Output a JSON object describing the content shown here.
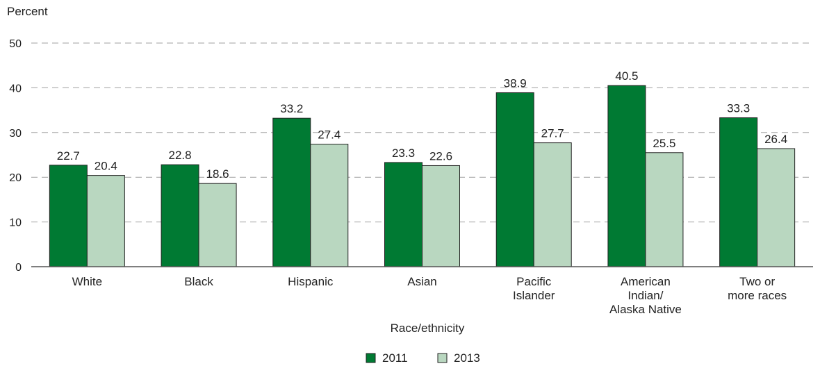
{
  "chart_data": {
    "type": "bar",
    "ylabel": "Percent",
    "xlabel": "Race/ethnicity",
    "ylim": [
      0,
      50
    ],
    "yticks": [
      0,
      10,
      20,
      30,
      40,
      50
    ],
    "grid": true,
    "legend_position": "bottom-center",
    "categories": [
      [
        "White"
      ],
      [
        "Black"
      ],
      [
        "Hispanic"
      ],
      [
        "Asian"
      ],
      [
        "Pacific",
        "Islander"
      ],
      [
        "American",
        "Indian/",
        "Alaska Native"
      ],
      [
        "Two or",
        "more races"
      ]
    ],
    "series": [
      {
        "name": "2011",
        "color": "#007A33",
        "values": [
          22.7,
          22.8,
          33.2,
          23.3,
          38.9,
          40.5,
          33.3
        ]
      },
      {
        "name": "2013",
        "color": "#B9D7C0",
        "values": [
          20.4,
          18.6,
          27.4,
          22.6,
          27.7,
          25.5,
          26.4
        ]
      }
    ]
  }
}
